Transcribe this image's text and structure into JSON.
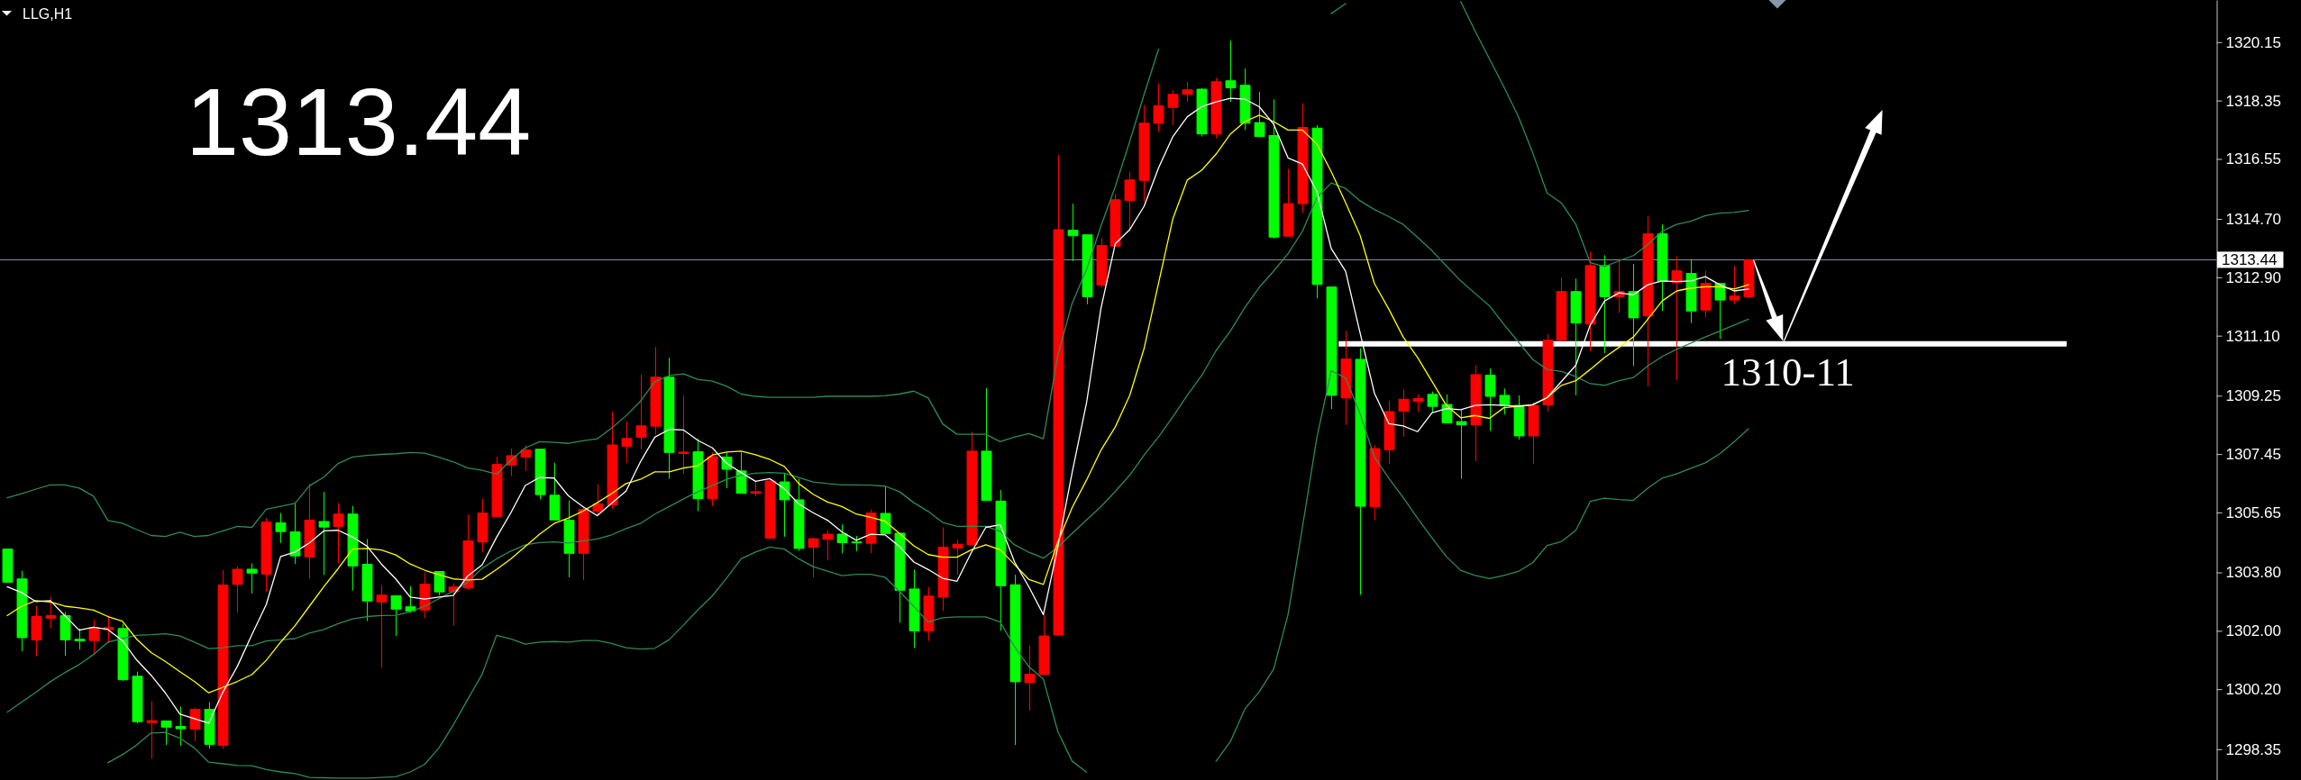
{
  "chart_data": {
    "type": "candlestick",
    "title": "LLG,H1",
    "annotations": [
      "1313.44",
      "1310-11"
    ],
    "categories": [
      null,
      null,
      null,
      null,
      null,
      null,
      null,
      null,
      null,
      null,
      null,
      null,
      null,
      null,
      null,
      null,
      null,
      null,
      null,
      null,
      null,
      null,
      null,
      null,
      null,
      null,
      null,
      null,
      null,
      null,
      null,
      null,
      null,
      null,
      null,
      null,
      null,
      null,
      null,
      null,
      null,
      null,
      null,
      null,
      null,
      null,
      null,
      null,
      null,
      null,
      null,
      null,
      null,
      null,
      null,
      null,
      null,
      null,
      null,
      null,
      null,
      null,
      null,
      null,
      null,
      null,
      null,
      null,
      null,
      null,
      null,
      null,
      null,
      null,
      null,
      null,
      null,
      null,
      null,
      null,
      null,
      null,
      null,
      null,
      null,
      null,
      null,
      null,
      null,
      null,
      null,
      null,
      null,
      null,
      null,
      null,
      null,
      null,
      null,
      null,
      null,
      null,
      null,
      null,
      null,
      null,
      null,
      null,
      null,
      null,
      null,
      null,
      null,
      null,
      null,
      null,
      null,
      null,
      null,
      null,
      null,
      null
    ],
    "ohlc": [
      [
        1304.52,
        1304.52,
        1303.5,
        1303.5
      ],
      [
        1303.6,
        1303.85,
        1301.37,
        1301.79
      ],
      [
        1301.72,
        1302.76,
        1301.21,
        1302.44
      ],
      [
        1302.39,
        1303.06,
        1302.07,
        1302.47
      ],
      [
        1302.47,
        1302.58,
        1301.23,
        1301.72
      ],
      [
        1301.74,
        1302.07,
        1301.42,
        1301.69
      ],
      [
        1301.7,
        1302.35,
        1301.28,
        1302.1
      ],
      [
        1302.04,
        1302.47,
        1301.62,
        1302.1
      ],
      [
        1302.07,
        1302.21,
        1300.45,
        1300.49
      ],
      [
        1300.6,
        1300.74,
        1299.15,
        1299.2
      ],
      [
        1299.17,
        1299.83,
        1298.06,
        1299.23
      ],
      [
        1299.22,
        1299.24,
        1298.48,
        1299.03
      ],
      [
        1299.05,
        1299.66,
        1298.46,
        1298.98
      ],
      [
        1298.97,
        1299.63,
        1298.6,
        1299.58
      ],
      [
        1299.58,
        1299.8,
        1298.36,
        1298.5
      ],
      [
        1298.47,
        1303.87,
        1298.36,
        1303.41
      ],
      [
        1303.43,
        1303.98,
        1302.56,
        1303.9
      ],
      [
        1303.9,
        1304.08,
        1303.15,
        1303.78
      ],
      [
        1303.75,
        1305.47,
        1303.21,
        1305.35
      ],
      [
        1305.33,
        1305.63,
        1304.71,
        1305.06
      ],
      [
        1305.05,
        1305.96,
        1304.06,
        1304.31
      ],
      [
        1304.28,
        1306.54,
        1303.6,
        1305.41
      ],
      [
        1305.37,
        1306.28,
        1303.72,
        1305.2
      ],
      [
        1305.22,
        1305.94,
        1304.08,
        1305.6
      ],
      [
        1305.6,
        1305.85,
        1303.24,
        1304.0
      ],
      [
        1304.05,
        1304.83,
        1302.3,
        1302.92
      ],
      [
        1302.89,
        1303.41,
        1300.86,
        1303.1
      ],
      [
        1303.08,
        1303.1,
        1301.84,
        1302.67
      ],
      [
        1302.74,
        1303.38,
        1302.55,
        1302.61
      ],
      [
        1302.64,
        1303.8,
        1302.39,
        1303.44
      ],
      [
        1303.83,
        1303.83,
        1303.09,
        1303.2
      ],
      [
        1303.21,
        1303.47,
        1302.16,
        1303.35
      ],
      [
        1303.32,
        1305.58,
        1303.27,
        1304.77
      ],
      [
        1304.74,
        1306.07,
        1304.43,
        1305.63
      ],
      [
        1305.52,
        1307.37,
        1305.49,
        1307.13
      ],
      [
        1307.11,
        1307.62,
        1306.77,
        1307.4
      ],
      [
        1307.36,
        1307.72,
        1306.93,
        1307.57
      ],
      [
        1307.6,
        1307.6,
        1306.05,
        1306.2
      ],
      [
        1306.18,
        1307.18,
        1305.42,
        1305.42
      ],
      [
        1305.41,
        1306.02,
        1303.65,
        1304.39
      ],
      [
        1304.39,
        1305.84,
        1303.56,
        1305.74
      ],
      [
        1305.68,
        1306.52,
        1305.55,
        1305.91
      ],
      [
        1305.88,
        1308.76,
        1305.76,
        1307.73
      ],
      [
        1307.69,
        1308.46,
        1307.17,
        1307.93
      ],
      [
        1307.97,
        1309.9,
        1307.59,
        1308.32
      ],
      [
        1308.31,
        1310.75,
        1308.05,
        1309.82
      ],
      [
        1309.82,
        1310.42,
        1306.69,
        1307.5
      ],
      [
        1307.47,
        1309.25,
        1306.83,
        1307.51
      ],
      [
        1307.52,
        1307.92,
        1305.69,
        1306.07
      ],
      [
        1306.07,
        1307.5,
        1305.85,
        1307.37
      ],
      [
        1307.36,
        1307.5,
        1306.4,
        1306.98
      ],
      [
        1306.93,
        1307.5,
        1306.24,
        1306.24
      ],
      [
        1306.24,
        1306.61,
        1306.14,
        1306.29
      ],
      [
        1304.86,
        1306.69,
        1304.86,
        1306.62
      ],
      [
        1306.59,
        1306.86,
        1304.9,
        1306.04
      ],
      [
        1306.04,
        1306.69,
        1304.46,
        1304.54
      ],
      [
        1304.58,
        1304.87,
        1303.65,
        1304.84
      ],
      [
        1304.82,
        1305.09,
        1304.17,
        1304.98
      ],
      [
        1304.98,
        1305.28,
        1304.39,
        1304.72
      ],
      [
        1304.74,
        1304.93,
        1304.46,
        1304.72
      ],
      [
        1304.7,
        1305.74,
        1304.39,
        1305.63
      ],
      [
        1305.62,
        1306.45,
        1305.0,
        1305.0
      ],
      [
        1305.01,
        1305.01,
        1302.25,
        1303.25
      ],
      [
        1303.29,
        1303.89,
        1301.47,
        1302.0
      ],
      [
        1302.0,
        1303.35,
        1301.69,
        1303.07
      ],
      [
        1303.04,
        1305.19,
        1302.61,
        1304.58
      ],
      [
        1304.55,
        1304.81,
        1303.73,
        1304.67
      ],
      [
        1304.65,
        1308.14,
        1304.65,
        1307.54
      ],
      [
        1307.54,
        1309.49,
        1306.02,
        1306.02
      ],
      [
        1306.0,
        1306.34,
        1302.0,
        1303.39
      ],
      [
        1303.42,
        1303.73,
        1298.48,
        1300.43
      ],
      [
        1300.4,
        1301.55,
        1299.54,
        1300.66
      ],
      [
        1300.65,
        1302.5,
        1300.65,
        1301.84
      ],
      [
        1301.87,
        1316.67,
        1301.87,
        1314.37
      ],
      [
        1314.35,
        1315.17,
        1313.4,
        1314.18
      ],
      [
        1314.21,
        1314.21,
        1312.07,
        1312.3
      ],
      [
        1312.66,
        1314.12,
        1312.59,
        1313.88
      ],
      [
        1313.86,
        1315.47,
        1313.86,
        1315.29
      ],
      [
        1315.27,
        1316.16,
        1314.32,
        1315.9
      ],
      [
        1315.89,
        1318.21,
        1315.24,
        1317.65
      ],
      [
        1317.65,
        1318.88,
        1317.39,
        1318.19
      ],
      [
        1318.14,
        1318.67,
        1317.59,
        1318.54
      ],
      [
        1318.54,
        1318.93,
        1318.31,
        1318.68
      ],
      [
        1318.7,
        1318.74,
        1317.24,
        1317.32
      ],
      [
        1317.32,
        1319.05,
        1317.19,
        1318.93
      ],
      [
        1318.96,
        1320.2,
        1318.31,
        1318.74
      ],
      [
        1318.82,
        1319.34,
        1317.44,
        1317.65
      ],
      [
        1317.67,
        1318.62,
        1317.24,
        1317.24
      ],
      [
        1317.27,
        1318.39,
        1314.09,
        1314.14
      ],
      [
        1314.17,
        1316.24,
        1314.17,
        1315.17
      ],
      [
        1315.17,
        1318.27,
        1314.89,
        1317.52
      ],
      [
        1317.5,
        1317.59,
        1312.25,
        1312.68
      ],
      [
        1312.6,
        1312.6,
        1308.84,
        1309.26
      ],
      [
        1309.18,
        1311.25,
        1308.34,
        1310.38
      ],
      [
        1310.37,
        1310.71,
        1303.11,
        1305.84
      ],
      [
        1305.82,
        1307.73,
        1305.41,
        1307.62
      ],
      [
        1307.58,
        1309.09,
        1307.15,
        1308.76
      ],
      [
        1308.77,
        1309.44,
        1307.98,
        1309.14
      ],
      [
        1309.07,
        1309.29,
        1308.76,
        1309.16
      ],
      [
        1309.29,
        1309.38,
        1308.72,
        1308.92
      ],
      [
        1308.98,
        1309.29,
        1308.41,
        1308.41
      ],
      [
        1308.45,
        1308.8,
        1306.69,
        1308.35
      ],
      [
        1308.35,
        1310.19,
        1307.23,
        1309.9
      ],
      [
        1309.88,
        1310.09,
        1308.16,
        1309.23
      ],
      [
        1309.26,
        1309.47,
        1308.67,
        1308.95
      ],
      [
        1308.95,
        1309.26,
        1307.89,
        1308.01
      ],
      [
        1308.01,
        1309.04,
        1307.15,
        1308.95
      ],
      [
        1308.97,
        1311.15,
        1308.76,
        1310.96
      ],
      [
        1310.96,
        1312.89,
        1310.96,
        1312.46
      ],
      [
        1312.46,
        1312.86,
        1309.26,
        1311.49
      ],
      [
        1311.46,
        1313.69,
        1310.62,
        1313.26
      ],
      [
        1313.26,
        1313.58,
        1310.56,
        1312.3
      ],
      [
        1312.3,
        1313.48,
        1311.8,
        1312.46
      ],
      [
        1312.46,
        1313.31,
        1310.16,
        1311.65
      ],
      [
        1311.71,
        1314.78,
        1309.54,
        1314.24
      ],
      [
        1314.24,
        1314.53,
        1311.86,
        1312.77
      ],
      [
        1312.74,
        1313.54,
        1309.73,
        1313.1
      ],
      [
        1313.02,
        1313.44,
        1311.49,
        1311.86
      ],
      [
        1311.89,
        1313.1,
        1311.68,
        1312.71
      ],
      [
        1312.71,
        1312.71,
        1311.0,
        1312.2
      ],
      [
        1312.2,
        1313.25,
        1312.07,
        1312.32
      ],
      [
        1312.3,
        1313.46,
        1312.26,
        1313.44
      ]
    ],
    "colors": [
      "#00ff00",
      "#00ff00",
      "#ff0000",
      "#ff0000",
      "#00ff00",
      "#00ff00",
      "#ff0000",
      "#ff0000",
      "#00ff00",
      "#00ff00",
      "#ff0000",
      "#00ff00",
      "#00ff00",
      "#ff0000",
      "#00ff00",
      "#ff0000",
      "#ff0000",
      "#00ff00",
      "#ff0000",
      "#00ff00",
      "#00ff00",
      "#ff0000",
      "#00ff00",
      "#ff0000",
      "#00ff00",
      "#00ff00",
      "#ff0000",
      "#00ff00",
      "#00ff00",
      "#ff0000",
      "#00ff00",
      "#ff0000",
      "#ff0000",
      "#ff0000",
      "#ff0000",
      "#ff0000",
      "#ff0000",
      "#00ff00",
      "#00ff00",
      "#00ff00",
      "#ff0000",
      "#ff0000",
      "#ff0000",
      "#ff0000",
      "#ff0000",
      "#ff0000",
      "#00ff00",
      "#ff0000",
      "#00ff00",
      "#ff0000",
      "#00ff00",
      "#00ff00",
      "#ff0000",
      "#ff0000",
      "#00ff00",
      "#00ff00",
      "#ff0000",
      "#ff0000",
      "#00ff00",
      "#00ff00",
      "#ff0000",
      "#00ff00",
      "#00ff00",
      "#00ff00",
      "#ff0000",
      "#ff0000",
      "#ff0000",
      "#ff0000",
      "#00ff00",
      "#00ff00",
      "#00ff00",
      "#ff0000",
      "#ff0000",
      "#ff0000",
      "#00ff00",
      "#00ff00",
      "#ff0000",
      "#ff0000",
      "#ff0000",
      "#ff0000",
      "#ff0000",
      "#ff0000",
      "#ff0000",
      "#00ff00",
      "#ff0000",
      "#00ff00",
      "#00ff00",
      "#00ff00",
      "#00ff00",
      "#ff0000",
      "#ff0000",
      "#00ff00",
      "#00ff00",
      "#ff0000",
      "#00ff00",
      "#ff0000",
      "#ff0000",
      "#ff0000",
      "#ff0000",
      "#00ff00",
      "#00ff00",
      "#00ff00",
      "#ff0000",
      "#00ff00",
      "#00ff00",
      "#00ff00",
      "#ff0000",
      "#ff0000",
      "#ff0000",
      "#00ff00",
      "#ff0000",
      "#00ff00",
      "#ff0000",
      "#00ff00",
      "#ff0000",
      "#00ff00",
      "#ff0000",
      "#00ff00",
      "#ff0000",
      "#00ff00",
      "#ff0000",
      "#ff0000"
    ],
    "series": [
      {
        "type": "line",
        "color": "#2e8b57",
        "values": [
          1306.1,
          1306.23,
          1306.37,
          1306.5,
          1306.5,
          1306.4,
          1306.15,
          1305.4,
          1305.32,
          1305.12,
          1304.94,
          1304.91,
          1305.04,
          1304.91,
          1304.94,
          1305.08,
          1305.22,
          1305.19,
          1305.75,
          1305.84,
          1305.93,
          1306.47,
          1306.74,
          1307.16,
          1307.36,
          1307.41,
          1307.44,
          1307.46,
          1307.5,
          1307.48,
          1307.35,
          1307.21,
          1307.02,
          1306.95,
          1306.83,
          1307.26,
          1307.64,
          1307.83,
          1307.81,
          1307.78,
          1307.86,
          1307.92,
          1308.25,
          1308.63,
          1309.08,
          1309.68,
          1309.87,
          1309.92,
          1309.75,
          1309.7,
          1309.54,
          1309.3,
          1309.23,
          1309.2,
          1309.2,
          1309.2,
          1309.2,
          1309.23,
          1309.23,
          1309.23,
          1309.23,
          1309.25,
          1309.3,
          1309.39,
          1309.18,
          1308.38,
          1308.06,
          1308.06,
          1308.06,
          1307.83,
          1307.98,
          1308.08,
          1307.92,
          1310.49,
          1312.1,
          1313.14,
          1314.48,
          1315.7,
          1317.09,
          1318.54,
          1319.93,
          null,
          null,
          null,
          null,
          null,
          null,
          null,
          null,
          null,
          null,
          null,
          1321.03,
          1321.34,
          null,
          null,
          null,
          null,
          null,
          null,
          null,
          1321.4,
          1320.49,
          1319.63,
          1318.77,
          1317.86,
          1316.74,
          1315.5,
          1315.19,
          1314.53,
          1313.35,
          1313.23,
          1313.41,
          1313.57,
          1313.91,
          1314.32,
          1314.53,
          1314.63,
          1314.8,
          1314.88,
          1314.9,
          1314.96
        ]
      },
      {
        "type": "line",
        "color": "#2e8b57",
        "values": [
          1299.49,
          1299.8,
          1300.11,
          1300.43,
          1300.71,
          1300.96,
          1301.27,
          1301.65,
          1301.76,
          1301.86,
          1301.88,
          1301.91,
          1301.84,
          1301.65,
          1301.45,
          1301.48,
          1301.54,
          1301.54,
          1301.69,
          1301.72,
          1301.76,
          1301.93,
          1302.04,
          1302.22,
          1302.37,
          1302.44,
          1302.47,
          1302.48,
          1302.58,
          1302.76,
          1302.99,
          1303.22,
          1303.5,
          1303.93,
          1304.22,
          1304.46,
          1304.65,
          1304.72,
          1304.74,
          1304.71,
          1304.77,
          1304.83,
          1304.96,
          1305.15,
          1305.31,
          1305.6,
          1305.83,
          1306.07,
          1306.29,
          1306.48,
          1306.67,
          1306.8,
          1306.86,
          1306.88,
          1306.86,
          1306.73,
          1306.59,
          1306.54,
          1306.5,
          1306.5,
          1306.49,
          1306.46,
          1306.29,
          1305.95,
          1305.68,
          1305.34,
          1305.22,
          1305.22,
          1305.22,
          1305.07,
          1304.65,
          1304.42,
          1304.24,
          1304.58,
          1305.0,
          1305.42,
          1305.83,
          1306.3,
          1306.8,
          1307.42,
          1307.98,
          1308.6,
          1309.26,
          1309.87,
          1310.64,
          1311.25,
          1311.97,
          1312.59,
          1313.09,
          1313.63,
          1314.32,
          1315.35,
          1315.81,
          1315.64,
          1315.26,
          1314.99,
          1314.77,
          1314.53,
          1314.13,
          1313.72,
          1313.25,
          1312.79,
          1312.4,
          1312.02,
          1311.45,
          1310.91,
          1310.37,
          1310.06,
          1310.0,
          1309.84,
          1309.62,
          1309.57,
          1309.71,
          1309.81,
          1310.17,
          1310.46,
          1310.68,
          1310.87,
          1311.06,
          1311.24,
          1311.43,
          1311.61
        ]
      },
      {
        "type": "line",
        "color": "#2e8b57",
        "values": [
          null,
          null,
          null,
          null,
          null,
          null,
          null,
          1297.93,
          1298.18,
          1298.48,
          1298.85,
          1298.87,
          1298.69,
          1298.39,
          1297.95,
          1297.9,
          1297.85,
          1297.84,
          1297.72,
          1297.65,
          1297.6,
          1297.48,
          1297.47,
          1297.46,
          1297.46,
          1297.46,
          1297.48,
          1297.5,
          1297.65,
          1297.88,
          1298.39,
          1299.1,
          1299.89,
          1300.66,
          1301.86,
          1301.75,
          1301.59,
          1301.65,
          1301.67,
          1301.65,
          1301.7,
          1301.7,
          1301.61,
          1301.48,
          1301.44,
          1301.46,
          1301.73,
          1302.18,
          1302.65,
          1303.08,
          1303.63,
          1304.22,
          1304.43,
          1304.58,
          1304.52,
          1304.22,
          1303.98,
          1303.84,
          1303.7,
          1303.74,
          1303.74,
          1303.65,
          1303.22,
          1302.75,
          1302.27,
          1302.4,
          1302.43,
          1302.43,
          1302.43,
          1302.27,
          1301.51,
          1300.89,
          1300.51,
          1298.9,
          1297.98,
          1297.64,
          null,
          null,
          null,
          null,
          null,
          null,
          null,
          null,
          1297.98,
          1298.59,
          1299.59,
          1300.12,
          1300.82,
          1302.5,
          1305.19,
          1307.95,
          1310.02,
          1309.8,
          1308.7,
          1307.36,
          1306.71,
          1306.11,
          1305.47,
          1304.87,
          1304.29,
          1303.86,
          1303.71,
          1303.61,
          1303.71,
          1303.83,
          1304.1,
          1304.63,
          1304.75,
          1305.1,
          1305.99,
          1306.09,
          1306.05,
          1306.02,
          1306.4,
          1306.71,
          1306.84,
          1307.01,
          1307.18,
          1307.46,
          1307.83,
          1308.23
        ]
      },
      {
        "type": "line",
        "color": "#ffff00",
        "values": [
          1302.47,
          1302.76,
          1302.93,
          1302.89,
          1302.76,
          1302.71,
          1302.64,
          1302.44,
          1302.3,
          1301.74,
          1301.33,
          1301.05,
          1300.74,
          1300.44,
          1300.09,
          1300.26,
          1300.44,
          1300.65,
          1301.09,
          1301.65,
          1302.16,
          1302.76,
          1303.36,
          1303.92,
          1304.52,
          1304.54,
          1304.49,
          1304.34,
          1304.06,
          1303.87,
          1303.73,
          1303.6,
          1303.57,
          1303.59,
          1303.89,
          1304.22,
          1304.6,
          1304.98,
          1305.31,
          1305.48,
          1305.69,
          1305.95,
          1306.23,
          1306.54,
          1306.67,
          1306.9,
          1306.9,
          1307.02,
          1307.09,
          1307.42,
          1307.51,
          1307.54,
          1307.43,
          1307.28,
          1307.07,
          1306.54,
          1306.21,
          1305.97,
          1305.83,
          1305.6,
          1305.5,
          1305.38,
          1305.0,
          1304.62,
          1304.35,
          1304.27,
          1304.27,
          1304.5,
          1304.65,
          1304.5,
          1304.04,
          1303.58,
          1303.43,
          1304.73,
          1305.8,
          1306.65,
          1307.57,
          1308.29,
          1309.26,
          1310.71,
          1312.71,
          1314.71,
          1315.9,
          1316.2,
          1316.7,
          1317.32,
          1317.7,
          1317.9,
          1317.7,
          1317.44,
          1317.44,
          1317.01,
          1316.16,
          1315.2,
          1314.2,
          1312.71,
          1311.92,
          1311.06,
          1310.43,
          1309.69,
          1308.95,
          1308.57,
          1308.64,
          1308.55,
          1308.88,
          1308.92,
          1308.97,
          1309.19,
          1309.57,
          1309.71,
          1310.06,
          1310.43,
          1310.74,
          1311.06,
          1311.61,
          1312.17,
          1312.48,
          1312.57,
          1312.61,
          1312.61,
          1312.54,
          1312.67
        ]
      },
      {
        "type": "line",
        "color": "#ffffff",
        "values": [
          1303.36,
          1303.18,
          1302.9,
          1302.93,
          1302.47,
          1302.02,
          1302.11,
          1302.04,
          1301.7,
          1301.1,
          1300.63,
          1300.08,
          1299.43,
          1299.29,
          1299.15,
          1300.12,
          1300.91,
          1301.88,
          1302.81,
          1304.29,
          1304.43,
          1304.71,
          1305.08,
          1305.1,
          1304.89,
          1304.61,
          1304.06,
          1303.6,
          1303.04,
          1302.98,
          1303.04,
          1303.09,
          1303.69,
          1304.03,
          1304.88,
          1305.64,
          1306.48,
          1306.73,
          1306.71,
          1306.16,
          1305.83,
          1305.55,
          1305.93,
          1306.31,
          1307.21,
          1307.97,
          1308.21,
          1308.19,
          1307.87,
          1307.64,
          1307.16,
          1306.88,
          1306.61,
          1306.69,
          1306.38,
          1305.91,
          1305.64,
          1305.41,
          1305.05,
          1304.79,
          1304.98,
          1304.96,
          1304.6,
          1304.12,
          1303.89,
          1303.62,
          1303.53,
          1304.42,
          1305.19,
          1305.27,
          1304.12,
          1303.35,
          1302.5,
          1304.58,
          1306.88,
          1309.03,
          1311.94,
          1313.94,
          1314.37,
          1315.09,
          1316.27,
          1317.24,
          1317.85,
          1318.16,
          1318.31,
          1318.42,
          1318.39,
          1318.16,
          1317.62,
          1316.58,
          1316.39,
          1315.55,
          1313.79,
          1313.09,
          1311.2,
          1309.33,
          1308.39,
          1308.32,
          1308.14,
          1308.72,
          1308.85,
          1308.82,
          1308.95,
          1308.97,
          1308.95,
          1308.92,
          1308.97,
          1309.19,
          1309.69,
          1310.19,
          1311.43,
          1312.17,
          1312.42,
          1312.36,
          1312.67,
          1312.79,
          1312.77,
          1312.79,
          1312.92,
          1312.67,
          1312.48,
          1312.54
        ]
      }
    ],
    "ylim": [
      1297.4,
      1321.45
    ],
    "yticks": [
      1298.35,
      {
        "value": 1300.2,
        "label": "1300.20"
      },
      {
        "value": 1302,
        "label": "1302.00"
      },
      {
        "value": 1303.8,
        "label": "1303.80"
      },
      1305.65,
      1307.45,
      1309.25,
      {
        "value": 1311.1,
        "label": "1311.10"
      },
      {
        "value": 1312.9,
        "label": "1312.90"
      },
      {
        "value": 1314.7,
        "label": "1314.70"
      },
      1316.55,
      1318.35,
      1320.15
    ],
    "tick_labels": "y",
    "ref_lines": [
      {
        "axis": "y",
        "value": 1313.44,
        "label": "1313.44",
        "color": "#8796a8"
      },
      {
        "axis": "y",
        "value": 1310.85,
        "color": "#ffffff"
      }
    ]
  }
}
